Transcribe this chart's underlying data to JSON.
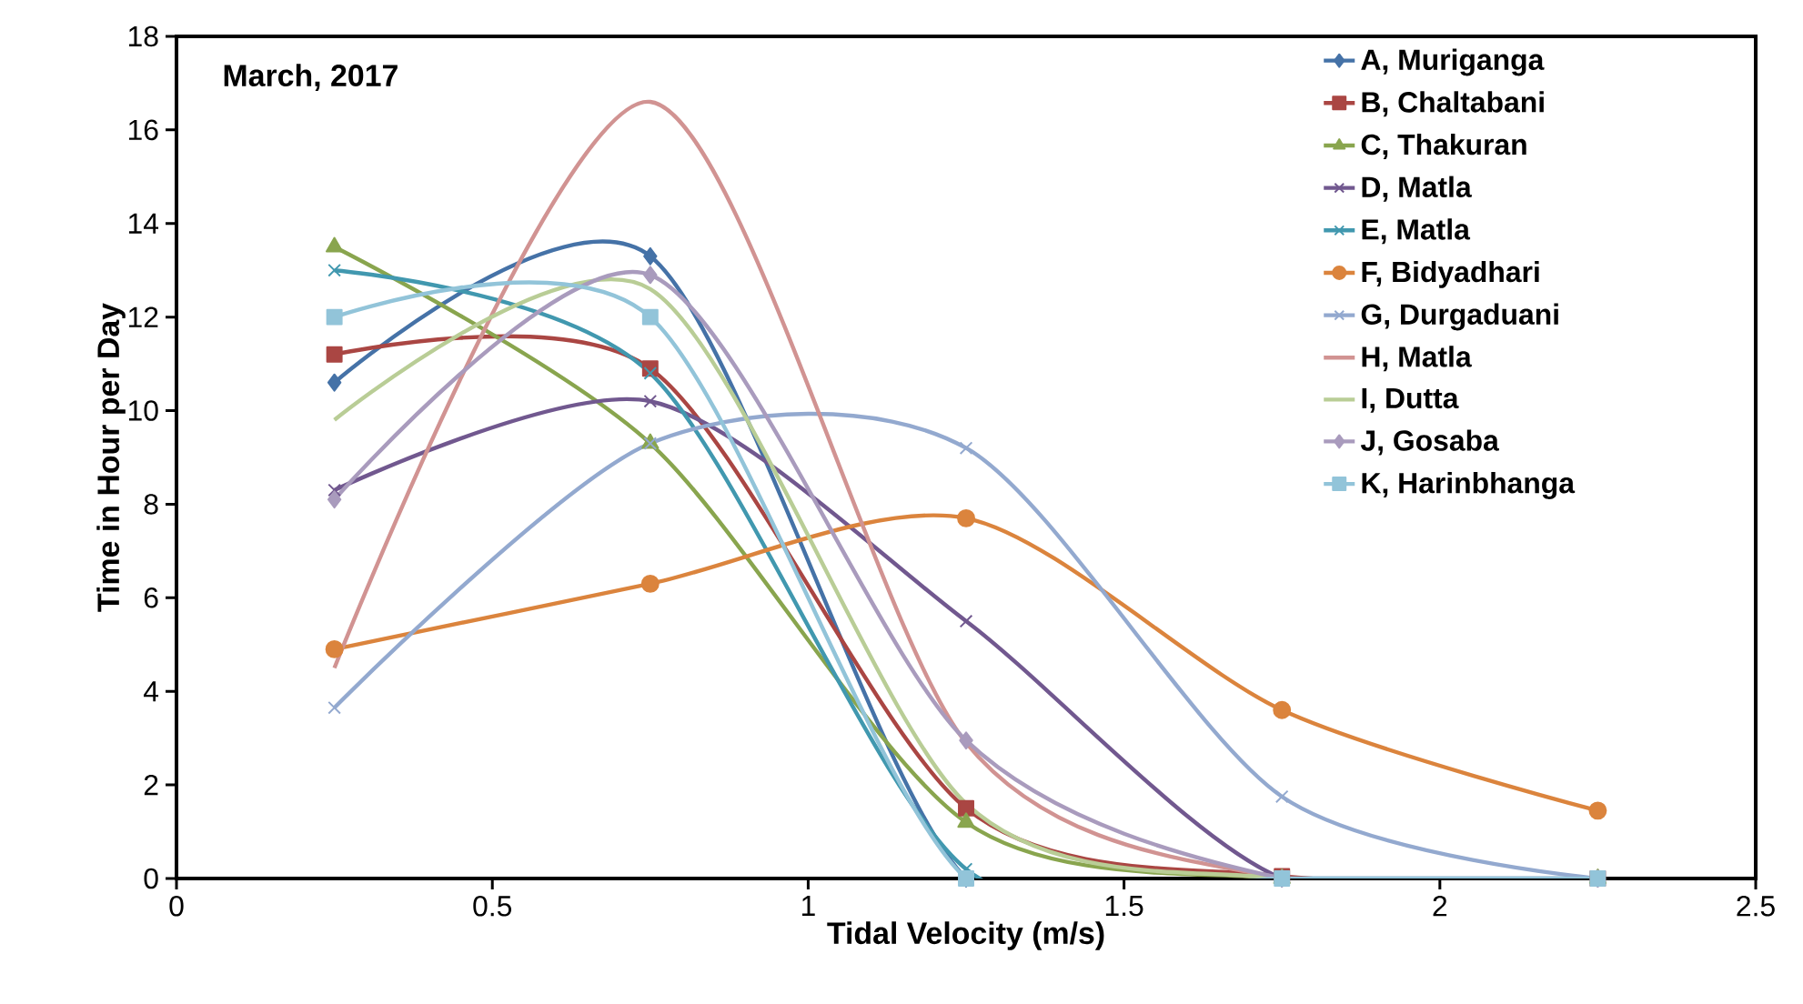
{
  "chart_data": {
    "type": "line",
    "title": "March, 2017",
    "xlabel": "Tidal Velocity (m/s)",
    "ylabel": "Time in Hour per  Day",
    "x": [
      0.25,
      0.75,
      1.25,
      1.75,
      2.25
    ],
    "xlim": [
      0,
      2.5
    ],
    "xticks": [
      0,
      0.5,
      1,
      1.5,
      2,
      2.5
    ],
    "ylim": [
      0,
      18
    ],
    "yticks": [
      0,
      2,
      4,
      6,
      8,
      10,
      12,
      14,
      16,
      18
    ],
    "grid": false,
    "legend": "top right",
    "series": [
      {
        "name": "A, Muriganga",
        "color": "#4572a7",
        "marker": "diamond",
        "values": [
          10.6,
          13.3,
          0,
          0,
          0
        ]
      },
      {
        "name": "B, Chaltabani",
        "color": "#aa4643",
        "marker": "square",
        "values": [
          11.2,
          10.9,
          1.5,
          0.05,
          0
        ]
      },
      {
        "name": "C, Thakuran",
        "color": "#89a54e",
        "marker": "triangle",
        "values": [
          13.5,
          9.3,
          1.2,
          0,
          0
        ]
      },
      {
        "name": "D, Matla",
        "color": "#71588f",
        "marker": "cross",
        "values": [
          8.3,
          10.2,
          5.5,
          0,
          0
        ]
      },
      {
        "name": "E, Matla",
        "color": "#4198af",
        "marker": "cross",
        "values": [
          13.0,
          10.8,
          0.2,
          0,
          0
        ]
      },
      {
        "name": "F, Bidyadhari",
        "color": "#db843d",
        "marker": "circle",
        "values": [
          4.9,
          6.3,
          7.7,
          3.6,
          1.45
        ]
      },
      {
        "name": "G, Durgaduani",
        "color": "#93a9cf",
        "marker": "cross",
        "values": [
          3.65,
          9.3,
          9.2,
          1.75,
          0
        ]
      },
      {
        "name": "H, Matla",
        "color": "#d19392",
        "marker": "none",
        "values": [
          4.5,
          16.6,
          2.9,
          0,
          0
        ]
      },
      {
        "name": "I, Dutta",
        "color": "#b9cd96",
        "marker": "none",
        "values": [
          9.8,
          12.6,
          1.6,
          0,
          0
        ]
      },
      {
        "name": "J, Gosaba",
        "color": "#a99bbd",
        "marker": "diamond",
        "values": [
          8.1,
          12.9,
          2.95,
          0,
          0
        ]
      },
      {
        "name": "K, Harinbhanga",
        "color": "#92c4d9",
        "marker": "square",
        "values": [
          12.0,
          12.0,
          0,
          0,
          0
        ]
      }
    ]
  }
}
